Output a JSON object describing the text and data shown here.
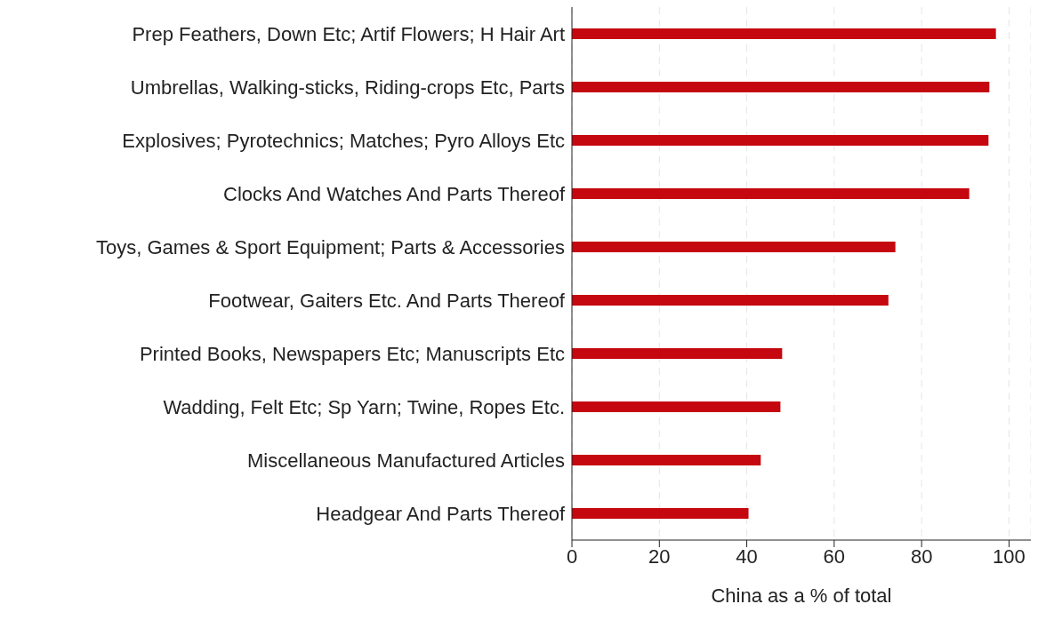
{
  "chart_data": {
    "type": "bar",
    "orientation": "horizontal",
    "xlabel": "China as a % of total",
    "categories": [
      "Prep Feathers, Down Etc; Artif Flowers; H Hair Art",
      "Umbrellas, Walking-sticks, Riding-crops Etc, Parts",
      "Explosives; Pyrotechnics; Matches; Pyro Alloys Etc",
      "Clocks And Watches And Parts Thereof",
      "Toys, Games & Sport Equipment; Parts & Accessories",
      "Footwear, Gaiters Etc. And Parts Thereof",
      "Printed Books, Newspapers Etc; Manuscripts Etc",
      "Wadding, Felt Etc; Sp Yarn; Twine, Ropes Etc.",
      "Miscellaneous Manufactured Articles",
      "Headgear And Parts Thereof"
    ],
    "values": [
      97.0,
      95.5,
      95.3,
      90.9,
      74.0,
      72.4,
      48.1,
      47.7,
      43.2,
      40.4
    ],
    "color": "#c5070f",
    "xlim": [
      0,
      105
    ],
    "xticks": [
      0,
      20,
      40,
      60,
      80,
      100
    ],
    "grid": "x"
  }
}
